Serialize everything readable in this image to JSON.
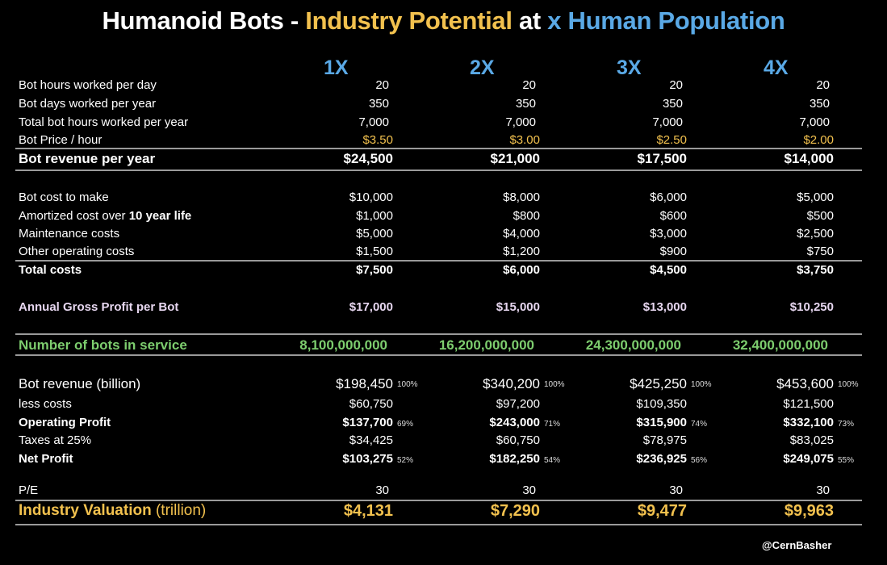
{
  "title": {
    "part1": "Humanoid Bots - ",
    "part2": "Industry Potential",
    "part3": " at ",
    "part4": "x Human Population"
  },
  "columns": [
    "1X",
    "2X",
    "3X",
    "4X"
  ],
  "rows": {
    "hours_per_day": {
      "label": "Bot hours worked per day",
      "values": [
        "20",
        "20",
        "20",
        "20"
      ]
    },
    "days_per_year": {
      "label": "Bot days worked per year",
      "values": [
        "350",
        "350",
        "350",
        "350"
      ]
    },
    "total_hours": {
      "label": "Total bot hours worked per year",
      "values": [
        "7,000",
        "7,000",
        "7,000",
        "7,000"
      ]
    },
    "price_hour": {
      "label": "Bot Price / hour",
      "values": [
        "$3.50",
        "$3.00",
        "$2.50",
        "$2.00"
      ]
    },
    "revenue_year": {
      "label": "Bot revenue per year",
      "values": [
        "$24,500",
        "$21,000",
        "$17,500",
        "$14,000"
      ]
    },
    "cost_to_make": {
      "label": "Bot cost to make",
      "values": [
        "$10,000",
        "$8,000",
        "$6,000",
        "$5,000"
      ]
    },
    "amortized": {
      "label_prefix": "Amortized cost over ",
      "label_bold": "10 year life",
      "values": [
        "$1,000",
        "$800",
        "$600",
        "$500"
      ]
    },
    "maintenance": {
      "label": "Maintenance costs",
      "values": [
        "$5,000",
        "$4,000",
        "$3,000",
        "$2,500"
      ]
    },
    "other_op": {
      "label": "Other operating costs",
      "values": [
        "$1,500",
        "$1,200",
        "$900",
        "$750"
      ]
    },
    "total_costs": {
      "label": "Total costs",
      "values": [
        "$7,500",
        "$6,000",
        "$4,500",
        "$3,750"
      ]
    },
    "gross_profit": {
      "label": "Annual Gross Profit per Bot",
      "values": [
        "$17,000",
        "$15,000",
        "$13,000",
        "$10,250"
      ]
    },
    "num_bots": {
      "label": "Number of bots in service",
      "values": [
        "8,100,000,000",
        "16,200,000,000",
        "24,300,000,000",
        "32,400,000,000"
      ]
    },
    "revenue_billion": {
      "label": "Bot revenue (billion)",
      "values": [
        "$198,450",
        "$340,200",
        "$425,250",
        "$453,600"
      ],
      "pcts": [
        "100%",
        "100%",
        "100%",
        "100%"
      ]
    },
    "less_costs": {
      "label": "less costs",
      "values": [
        "$60,750",
        "$97,200",
        "$109,350",
        "$121,500"
      ]
    },
    "operating_profit": {
      "label": "Operating Profit",
      "values": [
        "$137,700",
        "$243,000",
        "$315,900",
        "$332,100"
      ],
      "pcts": [
        "69%",
        "71%",
        "74%",
        "73%"
      ]
    },
    "taxes": {
      "label": "Taxes at 25%",
      "values": [
        "$34,425",
        "$60,750",
        "$78,975",
        "$83,025"
      ]
    },
    "net_profit": {
      "label": "Net Profit",
      "values": [
        "$103,275",
        "$182,250",
        "$236,925",
        "$249,075"
      ],
      "pcts": [
        "52%",
        "54%",
        "56%",
        "55%"
      ]
    },
    "pe": {
      "label": "P/E",
      "values": [
        "30",
        "30",
        "30",
        "30"
      ]
    },
    "valuation": {
      "label_bold": "Industry Valuation",
      "label_suffix": " (trillion)",
      "values": [
        "$4,131",
        "$7,290",
        "$9,477",
        "$9,963"
      ]
    }
  },
  "watermark": "@CernBasher",
  "colors": {
    "background": "#000000",
    "gold": "#f2c14e",
    "blue": "#5aa9e6",
    "green": "#7dcd6e",
    "lavender": "#e6d6ef",
    "rule": "#9a9a9a"
  }
}
